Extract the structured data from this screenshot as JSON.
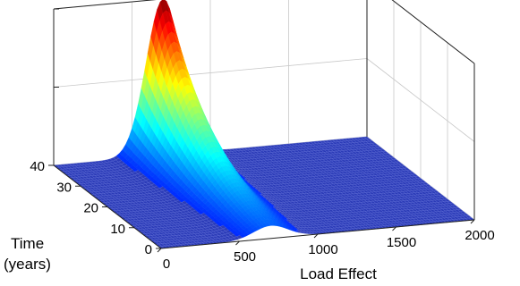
{
  "chart_data": {
    "type": "surface",
    "title": "",
    "xlabel": "Load Effect",
    "ylabel_lines": [
      "Time",
      "(years)"
    ],
    "zlabel": "",
    "xlim": [
      0,
      2000
    ],
    "ylim": [
      0,
      40
    ],
    "x_ticks": [
      0,
      500,
      1000,
      1500,
      2000
    ],
    "y_ticks": [
      0,
      10,
      20,
      30,
      40
    ],
    "z_ticks_labeled": false,
    "grid": true,
    "colormap": "jet",
    "surface": {
      "description_of_shape": "single ridge along time axis",
      "peak_load_effect": 700,
      "ridge_spread_load_effect": 110,
      "peak_time": 40,
      "time_decay": 16,
      "surface_color": "#2c3cb8",
      "mesh_color": "#5d6bd6"
    }
  }
}
